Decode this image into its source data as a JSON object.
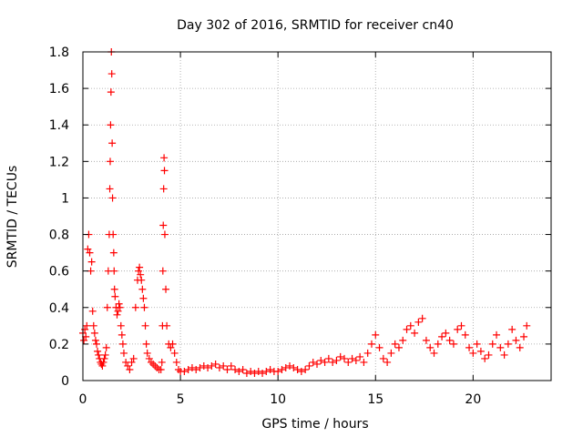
{
  "chart_data": {
    "type": "scatter",
    "title": "Day 302 of 2016, SRMTID for receiver cn40",
    "xlabel": "GPS time / hours",
    "ylabel": "SRMTID / TECUs",
    "xlim": [
      0,
      24
    ],
    "ylim": [
      0,
      1.8
    ],
    "xticks": [
      0,
      5,
      10,
      15,
      20
    ],
    "yticks": [
      0,
      0.2,
      0.4,
      0.6,
      0.8,
      1,
      1.2,
      1.4,
      1.6,
      1.8
    ],
    "xtick_labels": [
      "0",
      "5",
      "10",
      "15",
      "20"
    ],
    "ytick_labels": [
      "0",
      "0.2",
      "0.4",
      "0.6",
      "0.8",
      "1",
      "1.2",
      "1.4",
      "1.6",
      "1.8"
    ],
    "grid": true,
    "marker": "plus",
    "color": "#ff0000",
    "series": [
      {
        "x": [
          0.0,
          0.05,
          0.1,
          0.15,
          0.2,
          0.25,
          0.3,
          0.35,
          0.4,
          0.45,
          0.5,
          0.55,
          0.6,
          0.65,
          0.7,
          0.75,
          0.8,
          0.85,
          0.9,
          0.95,
          1.0,
          1.05,
          1.1,
          1.15,
          1.2,
          1.25,
          1.3,
          1.35,
          1.38,
          1.4,
          1.42,
          1.44,
          1.46,
          1.48,
          1.5,
          1.52,
          1.55,
          1.58,
          1.6,
          1.62,
          1.65,
          1.7,
          1.75,
          1.8,
          1.85,
          1.9,
          1.95,
          2.0,
          2.05,
          2.1,
          2.2,
          2.3,
          2.4,
          2.5,
          2.6,
          2.7,
          2.8,
          2.85,
          2.9,
          2.95,
          3.0,
          3.05,
          3.1,
          3.15,
          3.2,
          3.25,
          3.3,
          3.4,
          3.5,
          3.6,
          3.7,
          3.8,
          3.9,
          4.0,
          4.05,
          4.08,
          4.1,
          4.12,
          4.14,
          4.16,
          4.18,
          4.2,
          4.25,
          4.3,
          4.4,
          4.5,
          4.6,
          4.7,
          4.8,
          4.9,
          5.0,
          5.2,
          5.4,
          5.6,
          5.8,
          6.0,
          6.2,
          6.4,
          6.6,
          6.8,
          7.0,
          7.2,
          7.4,
          7.6,
          7.8,
          8.0,
          8.2,
          8.4,
          8.6,
          8.8,
          9.0,
          9.2,
          9.4,
          9.6,
          9.8,
          10.0,
          10.2,
          10.4,
          10.6,
          10.8,
          11.0,
          11.2,
          11.4,
          11.6,
          11.8,
          12.0,
          12.2,
          12.4,
          12.6,
          12.8,
          13.0,
          13.2,
          13.4,
          13.6,
          13.8,
          14.0,
          14.2,
          14.4,
          14.6,
          14.8,
          15.0,
          15.2,
          15.4,
          15.6,
          15.8,
          16.0,
          16.2,
          16.4,
          16.6,
          16.8,
          17.0,
          17.2,
          17.4,
          17.6,
          17.8,
          18.0,
          18.2,
          18.4,
          18.6,
          18.8,
          19.0,
          19.2,
          19.4,
          19.6,
          19.8,
          20.0,
          20.2,
          20.4,
          20.6,
          20.8,
          21.0,
          21.2,
          21.4,
          21.6,
          21.8,
          22.0,
          22.2,
          22.4,
          22.6,
          22.75
        ],
        "y": [
          0.26,
          0.22,
          0.28,
          0.24,
          0.3,
          0.72,
          0.8,
          0.7,
          0.6,
          0.65,
          0.38,
          0.3,
          0.26,
          0.22,
          0.2,
          0.16,
          0.14,
          0.12,
          0.1,
          0.09,
          0.08,
          0.1,
          0.12,
          0.14,
          0.18,
          0.4,
          0.6,
          0.8,
          1.05,
          1.2,
          1.4,
          1.58,
          1.8,
          1.68,
          1.3,
          1.0,
          0.8,
          0.7,
          0.6,
          0.5,
          0.46,
          0.4,
          0.36,
          0.38,
          0.42,
          0.4,
          0.3,
          0.25,
          0.2,
          0.15,
          0.1,
          0.08,
          0.06,
          0.1,
          0.12,
          0.4,
          0.55,
          0.6,
          0.62,
          0.58,
          0.55,
          0.5,
          0.45,
          0.4,
          0.3,
          0.2,
          0.15,
          0.12,
          0.1,
          0.09,
          0.08,
          0.07,
          0.06,
          0.06,
          0.1,
          0.3,
          0.6,
          0.85,
          1.05,
          1.22,
          1.15,
          0.8,
          0.5,
          0.3,
          0.2,
          0.18,
          0.2,
          0.15,
          0.1,
          0.06,
          0.05,
          0.05,
          0.06,
          0.07,
          0.06,
          0.07,
          0.08,
          0.07,
          0.08,
          0.09,
          0.07,
          0.08,
          0.06,
          0.08,
          0.06,
          0.05,
          0.06,
          0.04,
          0.05,
          0.04,
          0.05,
          0.04,
          0.05,
          0.06,
          0.05,
          0.05,
          0.06,
          0.07,
          0.08,
          0.07,
          0.06,
          0.05,
          0.06,
          0.08,
          0.1,
          0.09,
          0.11,
          0.1,
          0.12,
          0.1,
          0.11,
          0.13,
          0.12,
          0.1,
          0.12,
          0.11,
          0.13,
          0.1,
          0.15,
          0.2,
          0.25,
          0.18,
          0.12,
          0.1,
          0.15,
          0.2,
          0.18,
          0.22,
          0.28,
          0.3,
          0.26,
          0.32,
          0.34,
          0.22,
          0.18,
          0.15,
          0.2,
          0.24,
          0.26,
          0.22,
          0.2,
          0.28,
          0.3,
          0.25,
          0.18,
          0.15,
          0.2,
          0.16,
          0.12,
          0.14,
          0.2,
          0.25,
          0.18,
          0.14,
          0.2,
          0.28,
          0.22,
          0.18,
          0.24,
          0.3
        ]
      }
    ]
  }
}
